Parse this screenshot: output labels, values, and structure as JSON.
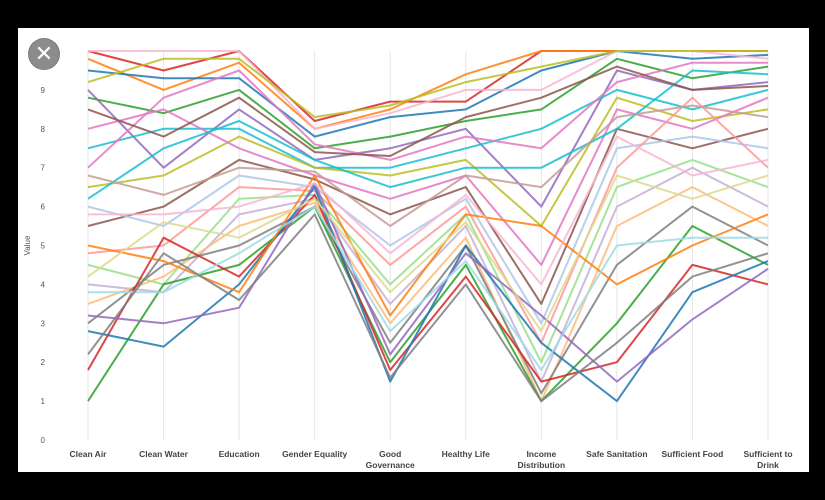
{
  "close_icon_glyph": "✕",
  "chart_data": {
    "type": "line",
    "chart_style": "parallel-coordinates",
    "title": "",
    "xlabel": "",
    "ylabel": "Value",
    "ylim": [
      0,
      10
    ],
    "yticks": [
      "0",
      "1",
      "2",
      "3",
      "4",
      "5",
      "6",
      "7",
      "8",
      "9"
    ],
    "categories": [
      [
        "Clean Air"
      ],
      [
        "Clean Water"
      ],
      [
        "Education"
      ],
      [
        "Gender Equality"
      ],
      [
        "Good",
        "Governance"
      ],
      [
        "Healthy Life"
      ],
      [
        "Income",
        "Distribution"
      ],
      [
        "Safe Sanitation"
      ],
      [
        "Sufficient Food"
      ],
      [
        "Sufficient to",
        "Drink"
      ]
    ],
    "grid": false,
    "legend": "none",
    "series_count_estimate": 160,
    "axis_value_ranges": [
      [
        1.0,
        10.0
      ],
      [
        2.4,
        9.9
      ],
      [
        3.4,
        10.0
      ],
      [
        5.0,
        8.4
      ],
      [
        1.5,
        8.7
      ],
      [
        2.7,
        9.4
      ],
      [
        1.0,
        10.0
      ],
      [
        1.0,
        10.0
      ],
      [
        3.1,
        10.0
      ],
      [
        4.0,
        10.0
      ]
    ],
    "series": [
      {
        "values": [
          10.0,
          9.5,
          10.0,
          8.2,
          8.7,
          8.7,
          10.0,
          10.0,
          10.0,
          10.0
        ],
        "color": "#d62728"
      },
      {
        "values": [
          9.8,
          9.0,
          9.7,
          8.0,
          8.5,
          9.4,
          10.0,
          10.0,
          10.0,
          10.0
        ],
        "color": "#ff7f0e"
      },
      {
        "values": [
          9.5,
          9.3,
          9.3,
          7.8,
          8.3,
          8.5,
          9.5,
          10.0,
          9.8,
          9.9
        ],
        "color": "#1f77b4"
      },
      {
        "values": [
          10.0,
          10.0,
          10.0,
          8.0,
          8.4,
          9.0,
          9.0,
          10.0,
          10.0,
          9.8
        ],
        "color": "#f7b6d2"
      },
      {
        "values": [
          8.8,
          8.4,
          9.0,
          7.5,
          7.8,
          8.2,
          8.5,
          9.8,
          9.3,
          9.6
        ],
        "color": "#2ca02c"
      },
      {
        "values": [
          9.0,
          7.0,
          8.5,
          7.2,
          7.5,
          8.0,
          6.0,
          9.5,
          9.0,
          9.2
        ],
        "color": "#9467bd"
      },
      {
        "values": [
          7.5,
          8.0,
          8.0,
          7.0,
          7.0,
          7.5,
          8.0,
          9.0,
          8.5,
          9.0
        ],
        "color": "#17becf"
      },
      {
        "values": [
          6.5,
          6.8,
          7.8,
          7.0,
          6.8,
          7.2,
          5.5,
          8.8,
          8.2,
          8.5
        ],
        "color": "#bcbd22"
      },
      {
        "values": [
          8.0,
          8.5,
          7.5,
          6.8,
          6.2,
          6.8,
          4.5,
          8.5,
          8.0,
          8.8
        ],
        "color": "#e377c2"
      },
      {
        "values": [
          5.5,
          6.0,
          7.2,
          6.7,
          5.8,
          6.5,
          3.5,
          8.0,
          7.5,
          8.0
        ],
        "color": "#8c564b"
      },
      {
        "values": [
          6.0,
          5.5,
          6.8,
          6.5,
          5.0,
          6.2,
          3.0,
          7.5,
          7.8,
          7.5
        ],
        "color": "#aec7e8"
      },
      {
        "values": [
          4.8,
          5.0,
          6.5,
          6.4,
          4.5,
          6.0,
          2.5,
          7.0,
          8.8,
          7.0
        ],
        "color": "#ff9896"
      },
      {
        "values": [
          4.5,
          4.0,
          6.2,
          6.3,
          4.0,
          5.8,
          2.0,
          6.5,
          7.2,
          6.5
        ],
        "color": "#98df8a"
      },
      {
        "values": [
          4.0,
          3.8,
          5.8,
          6.2,
          3.5,
          5.5,
          1.5,
          6.0,
          7.0,
          6.0
        ],
        "color": "#c5b0d5"
      },
      {
        "values": [
          3.5,
          4.2,
          5.5,
          6.1,
          3.0,
          5.2,
          1.0,
          5.5,
          6.5,
          5.5
        ],
        "color": "#ffbb78"
      },
      {
        "values": [
          3.0,
          4.5,
          5.0,
          6.0,
          2.5,
          5.0,
          1.2,
          4.5,
          6.0,
          5.0
        ],
        "color": "#7f7f7f"
      },
      {
        "values": [
          1.0,
          4.0,
          4.5,
          6.0,
          2.0,
          4.5,
          1.0,
          3.0,
          5.5,
          4.5
        ],
        "color": "#2ca02c"
      },
      {
        "values": [
          1.8,
          5.2,
          4.2,
          6.3,
          1.8,
          4.2,
          1.5,
          2.0,
          4.5,
          4.0
        ],
        "color": "#d62728"
      },
      {
        "values": [
          2.8,
          2.4,
          4.0,
          6.5,
          1.5,
          5.0,
          2.5,
          1.0,
          3.8,
          4.6
        ],
        "color": "#1f77b4"
      },
      {
        "values": [
          3.2,
          3.0,
          3.4,
          6.6,
          2.2,
          4.8,
          3.2,
          1.5,
          3.1,
          4.4
        ],
        "color": "#9467bd"
      },
      {
        "values": [
          5.0,
          4.6,
          3.8,
          6.8,
          3.2,
          5.8,
          5.5,
          4.0,
          5.0,
          5.8
        ],
        "color": "#ff7f0e"
      },
      {
        "values": [
          6.2,
          7.5,
          8.2,
          7.2,
          6.5,
          7.0,
          7.0,
          8.0,
          9.5,
          9.4
        ],
        "color": "#17becf"
      },
      {
        "values": [
          7.0,
          8.8,
          9.5,
          7.6,
          7.2,
          7.8,
          7.5,
          9.2,
          9.7,
          9.7
        ],
        "color": "#e377c2"
      },
      {
        "values": [
          9.2,
          9.8,
          9.8,
          8.3,
          8.6,
          9.2,
          9.6,
          10.0,
          10.0,
          10.0
        ],
        "color": "#bcbd22"
      },
      {
        "values": [
          8.5,
          7.8,
          8.8,
          7.4,
          7.3,
          8.3,
          8.8,
          9.6,
          9.0,
          9.1
        ],
        "color": "#8c564b"
      },
      {
        "values": [
          6.8,
          6.3,
          7.0,
          6.9,
          5.5,
          6.8,
          6.5,
          8.3,
          8.6,
          8.3
        ],
        "color": "#c49c94"
      },
      {
        "values": [
          5.8,
          5.8,
          6.0,
          6.6,
          4.8,
          6.3,
          4.0,
          7.8,
          6.8,
          7.2
        ],
        "color": "#f7b6d2"
      },
      {
        "values": [
          4.2,
          5.6,
          5.2,
          6.2,
          3.8,
          5.6,
          2.8,
          6.8,
          6.2,
          6.8
        ],
        "color": "#dbdb8d"
      },
      {
        "values": [
          3.8,
          3.8,
          4.8,
          6.0,
          2.8,
          4.6,
          1.8,
          5.0,
          5.2,
          5.2
        ],
        "color": "#9edae5"
      },
      {
        "values": [
          2.2,
          4.8,
          3.6,
          5.8,
          1.6,
          4.0,
          1.0,
          2.5,
          4.2,
          4.8
        ],
        "color": "#7f7f7f"
      }
    ]
  }
}
